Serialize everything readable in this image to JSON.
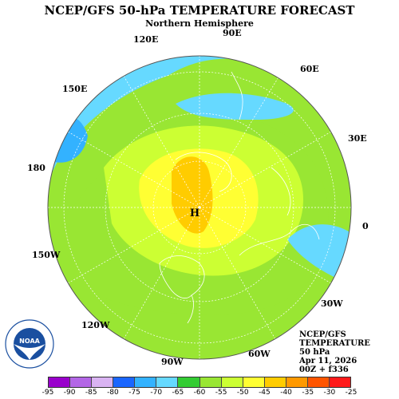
{
  "title": "NCEP/GFS 50-hPa TEMPERATURE FORECAST",
  "subtitle": "Northern Hemisphere",
  "longitude_labels": [
    "90E",
    "60E",
    "30E",
    "0",
    "30W",
    "60W",
    "90W",
    "120W",
    "150W",
    "180",
    "150E",
    "120E"
  ],
  "high_marker": "H",
  "info": {
    "model": "NCEP/GFS",
    "field": "TEMPERATURE",
    "level": "50 hPa",
    "date": "Apr 11, 2026",
    "run": "00Z + f336"
  },
  "logo": "NOAA",
  "legend": {
    "colors": [
      "#9900cc",
      "#b366e6",
      "#d9b3f2",
      "#1a66ff",
      "#33b2ff",
      "#66d9ff",
      "#33cc33",
      "#99e633",
      "#ccff33",
      "#ffff33",
      "#ffcc00",
      "#ff9900",
      "#ff5500",
      "#ff1a1a"
    ],
    "ticks": [
      "-95",
      "-90",
      "-85",
      "-80",
      "-75",
      "-70",
      "-65",
      "-60",
      "-55",
      "-50",
      "-45",
      "-40",
      "-35",
      "-30",
      "-25"
    ]
  },
  "colors": {
    "cyan": "#33b2ff",
    "light_cyan": "#66d9ff",
    "green": "#99e633",
    "lime": "#ccff33",
    "yellow": "#ffff33",
    "orange": "#ffcc00"
  }
}
